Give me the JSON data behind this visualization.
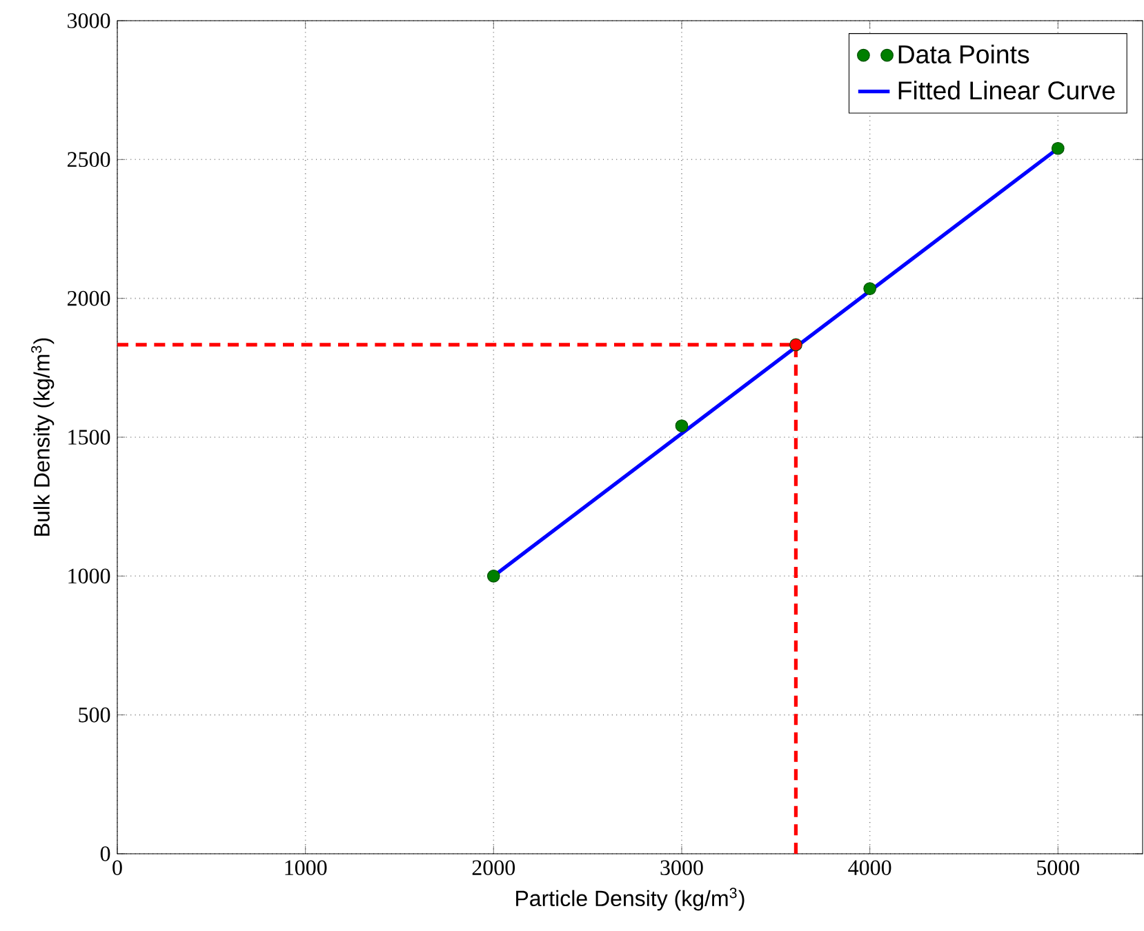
{
  "chart_data": {
    "type": "scatter",
    "xlabel": "Particle Density (kg/m$^{3}$)",
    "ylabel": "Bulk Density (kg/m$^{3}$)",
    "xlim": [
      0,
      5450
    ],
    "ylim": [
      0,
      3000
    ],
    "xticks": [
      0,
      1000,
      2000,
      3000,
      4000,
      5000
    ],
    "yticks": [
      0,
      500,
      1000,
      1500,
      2000,
      2500,
      3000
    ],
    "grid": true,
    "legend": "top right",
    "series": [
      {
        "type": "line",
        "color": "#ff0000",
        "line_style": "dashed",
        "marker": "none",
        "x": [
          0,
          3607
        ],
        "values": [
          1833,
          1833
        ]
      },
      {
        "type": "line",
        "color": "#ff0000",
        "line_style": "dashed",
        "marker": "none",
        "x": [
          3607,
          3607
        ],
        "values": [
          0,
          1833
        ]
      },
      {
        "name": "Data Points",
        "color": "#007f00",
        "marker": "circle",
        "x": [
          2000,
          3000,
          4000,
          5000
        ],
        "values": [
          1000,
          1541,
          2035,
          2540
        ]
      },
      {
        "type": "line",
        "name": "Fitted Linear Curve",
        "color": "#0000ff",
        "line_style": "solid",
        "marker": "none",
        "x": [
          2000,
          5000
        ],
        "values": [
          1000,
          2540
        ]
      },
      {
        "color": "#ff0000",
        "marker": "circle",
        "x": [
          3607
        ],
        "values": [
          1833
        ]
      }
    ]
  }
}
